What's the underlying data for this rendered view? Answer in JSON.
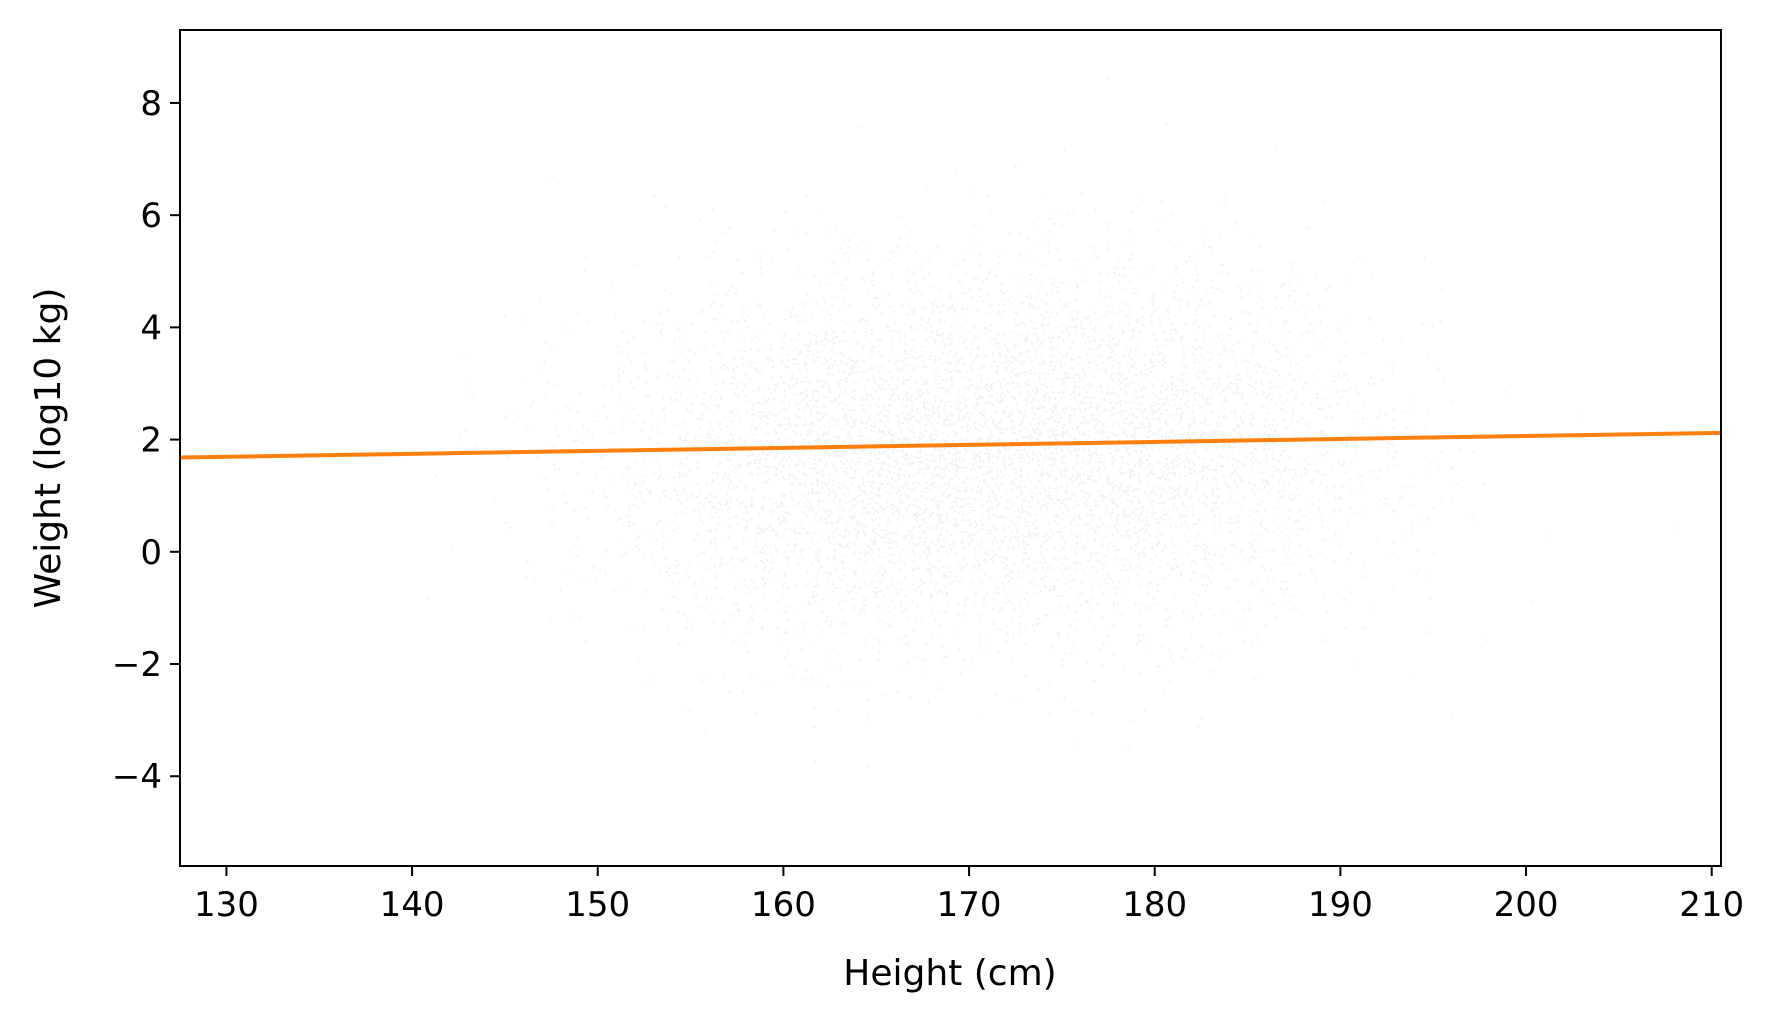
{
  "chart_data": {
    "type": "scatter",
    "title": "",
    "xlabel": "Height (cm)",
    "ylabel": "Weight (log10 kg)",
    "xlim": [
      127.5,
      210.5
    ],
    "ylim": [
      -5.6,
      9.3
    ],
    "x_ticks": [
      130,
      140,
      150,
      160,
      170,
      180,
      190,
      200,
      210
    ],
    "y_ticks": [
      -4,
      -2,
      0,
      2,
      4,
      6,
      8
    ],
    "x_tick_labels": [
      "130",
      "140",
      "150",
      "160",
      "170",
      "180",
      "190",
      "200",
      "210"
    ],
    "y_tick_labels": [
      "−4",
      "−2",
      "0",
      "2",
      "4",
      "6",
      "8"
    ],
    "grid": false,
    "legend": "none",
    "series": [
      {
        "kind": "scatter-cloud",
        "color": "#5b8aa8",
        "clusters": [
          {
            "center_x": 164,
            "center_y": 1.6,
            "sd_x": 7,
            "sd_y": 1.6
          },
          {
            "center_x": 178,
            "center_y": 1.9,
            "sd_x": 7,
            "sd_y": 1.6
          }
        ]
      },
      {
        "kind": "line",
        "color": "#ff7f0e",
        "x": [
          127.5,
          210.5
        ],
        "y": [
          1.68,
          2.12
        ]
      }
    ]
  }
}
